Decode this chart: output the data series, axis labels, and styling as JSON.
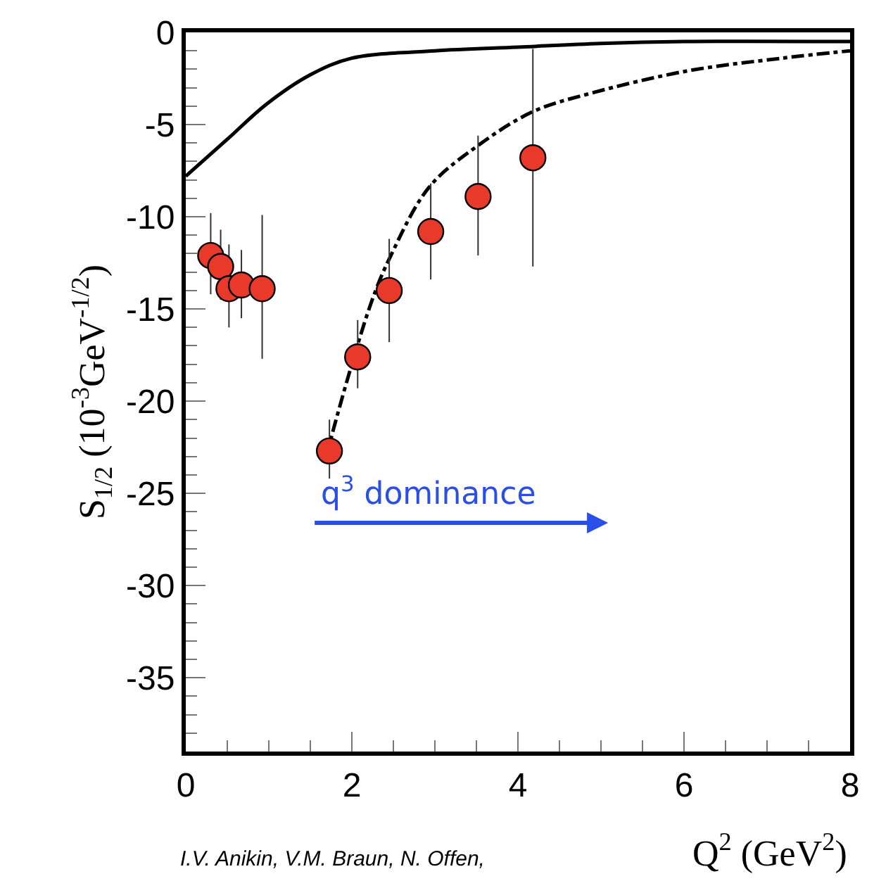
{
  "chart_data": {
    "type": "scatter",
    "xlabel": "Q$^{2}$ (GeV$^{2}$)",
    "ylabel": "S$_{1/2}$ (10$^{-3}$GeV$^{-1/2}$)",
    "xlim": [
      0,
      8
    ],
    "xticks": [
      0,
      2,
      4,
      6,
      8
    ],
    "ylim": [
      -39,
      0
    ],
    "yticks": [
      0,
      -5,
      -10,
      -15,
      -20,
      -25,
      -30,
      -35
    ],
    "series": [
      {
        "type": "line",
        "color": "#000000",
        "line_style": "solid",
        "x": [
          0,
          0.5,
          0.97,
          1.5,
          2,
          3,
          4,
          5,
          6,
          8
        ],
        "values": [
          -7.8,
          -5.8,
          -3.9,
          -2.3,
          -1.4,
          -1.0,
          -0.8,
          -0.6,
          -0.5,
          -0.5
        ]
      },
      {
        "type": "line",
        "color": "#000000",
        "line_style": "dashdot",
        "x": [
          1.7,
          1.78,
          2.23,
          2.47,
          2.93,
          3.5,
          4.18,
          4.88,
          6.03,
          7.18,
          8.0
        ],
        "values": [
          -23,
          -21.5,
          -14.7,
          -12.1,
          -8.4,
          -6.2,
          -4.3,
          -3.3,
          -2.1,
          -1.4,
          -1.0
        ]
      },
      {
        "marker": "circle",
        "color": "#e8392a",
        "x": [
          0.3,
          0.42,
          0.52,
          0.67,
          0.92,
          1.73,
          2.07,
          2.45,
          2.95,
          3.52,
          4.18
        ],
        "values": [
          -12.1,
          -12.7,
          -13.9,
          -13.7,
          -13.9,
          -22.7,
          -17.6,
          -14.0,
          -10.8,
          -8.9,
          -6.8
        ],
        "errors": [
          [
            -14.2,
            -9.8
          ],
          [
            -14.5,
            -10.7
          ],
          [
            -16.0,
            -11.5
          ],
          [
            -15.5,
            -11.8
          ],
          [
            -17.7,
            -9.9
          ],
          [
            -24.2,
            -21.0
          ],
          [
            -19.3,
            -15.6
          ],
          [
            -16.8,
            -11.2
          ],
          [
            -13.4,
            -8.2
          ],
          [
            -12.1,
            -5.6
          ],
          [
            -12.7,
            -0.9
          ]
        ]
      }
    ],
    "annotations": [
      "q$^{3}$ dominance",
      "I.V. Anikin, V.M. Braun, N. Offen,"
    ]
  }
}
